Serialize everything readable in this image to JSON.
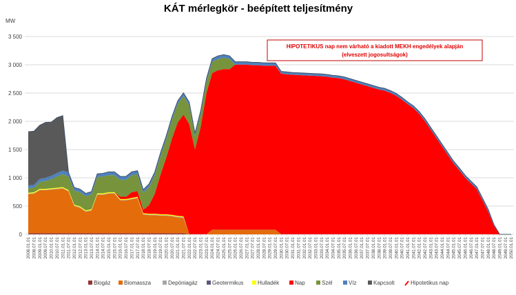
{
  "chart_data": {
    "type": "area",
    "stacked": true,
    "title": "KÁT mérlegkör - beépített teljesítmény",
    "ylabel": "MW",
    "xlabel": "",
    "ylim": [
      0,
      3500
    ],
    "yticks": [
      0,
      500,
      1000,
      1500,
      2000,
      2500,
      3000,
      3500
    ],
    "ytick_labels": [
      "0",
      "500",
      "1 000",
      "1 500",
      "2 000",
      "2 500",
      "3 000",
      "3 500"
    ],
    "grid": true,
    "legend_position": "bottom",
    "annotation": [
      "HIPOTETIKUS nap nem várható a kiadott MEKH engedélyek alapján",
      "(elveszett jogosultságok)"
    ],
    "categories": [
      "2008.01.01",
      "2008.07.01",
      "2009.01.01",
      "2009.07.01",
      "2010.01.01",
      "2010.07.01",
      "2011.01.01",
      "2011.07.01",
      "2012.01.01",
      "2012.07.01",
      "2013.01.01",
      "2013.07.01",
      "2014.01.01",
      "2014.07.01",
      "2015.01.01",
      "2015.07.01",
      "2016.01.01",
      "2016.07.01",
      "2017.01.01",
      "2017.07.01",
      "2018.01.01",
      "2018.07.01",
      "2019.01.01",
      "2019.07.01",
      "2020.01.01",
      "2020.07.01",
      "2021.01.01",
      "2021.07.01",
      "2022.01.01",
      "2022.07.01",
      "2023.01.01",
      "2023.07.01",
      "2024.01.01",
      "2024.07.01",
      "2025.01.01",
      "2025.07.01",
      "2026.01.01",
      "2026.07.01",
      "2027.01.01",
      "2027.07.01",
      "2028.01.01",
      "2028.07.01",
      "2029.01.01",
      "2029.07.01",
      "2030.01.01",
      "2030.07.01",
      "2031.01.01",
      "2031.07.01",
      "2032.01.01",
      "2032.07.01",
      "2033.01.01",
      "2033.07.01",
      "2034.01.01",
      "2034.07.01",
      "2035.01.01",
      "2035.07.01",
      "2036.01.01",
      "2036.07.01",
      "2037.01.01",
      "2037.07.01",
      "2038.01.01",
      "2038.07.01",
      "2039.01.01",
      "2039.07.01",
      "2040.01.01",
      "2040.07.01",
      "2041.01.01",
      "2041.07.01",
      "2042.01.01",
      "2042.07.01",
      "2043.01.01",
      "2043.07.01",
      "2044.01.01",
      "2044.07.01",
      "2045.01.01",
      "2045.07.01",
      "2046.01.01",
      "2046.07.01",
      "2047.01.01",
      "2047.07.01",
      "2048.01.01",
      "2048.07.01",
      "2049.01.01",
      "2049.07.01",
      "2050.01.01"
    ],
    "series": [
      {
        "name": "Biogáz",
        "color": "#953735",
        "values": [
          20,
          20,
          20,
          20,
          20,
          20,
          20,
          20,
          20,
          20,
          20,
          20,
          20,
          20,
          20,
          20,
          20,
          20,
          20,
          20,
          20,
          20,
          20,
          20,
          20,
          20,
          20,
          20,
          0,
          0,
          0,
          0,
          0,
          0,
          0,
          0,
          0,
          0,
          0,
          0,
          0,
          0,
          0,
          0,
          0,
          0,
          0,
          0,
          0,
          0,
          0,
          0,
          0,
          0,
          0,
          0,
          0,
          0,
          0,
          0,
          0,
          0,
          0,
          0,
          0,
          0,
          0,
          0,
          0,
          0,
          0,
          0,
          0,
          0,
          0,
          0,
          0,
          0,
          0,
          0,
          0,
          0,
          0,
          0,
          0
        ]
      },
      {
        "name": "Biomassza",
        "color": "#e46c0a",
        "values": [
          690,
          700,
          760,
          760,
          770,
          780,
          790,
          740,
          480,
          450,
          380,
          400,
          680,
          680,
          700,
          700,
          580,
          580,
          600,
          620,
          330,
          320,
          320,
          310,
          310,
          300,
          280,
          270,
          0,
          0,
          0,
          0,
          80,
          80,
          80,
          80,
          80,
          80,
          80,
          80,
          80,
          80,
          80,
          80,
          0,
          0,
          0,
          0,
          0,
          0,
          0,
          0,
          0,
          0,
          0,
          0,
          0,
          0,
          0,
          0,
          0,
          0,
          0,
          0,
          0,
          0,
          0,
          0,
          0,
          0,
          0,
          0,
          0,
          0,
          0,
          0,
          0,
          0,
          0,
          0,
          0,
          0,
          0,
          0,
          0
        ]
      },
      {
        "name": "Depóniagáz",
        "color": "#a6a6a6",
        "values": [
          10,
          10,
          10,
          10,
          10,
          10,
          10,
          10,
          10,
          10,
          10,
          10,
          10,
          10,
          10,
          10,
          10,
          10,
          10,
          10,
          10,
          10,
          10,
          10,
          10,
          10,
          10,
          10,
          0,
          0,
          0,
          0,
          0,
          0,
          0,
          0,
          0,
          0,
          0,
          0,
          0,
          0,
          0,
          0,
          0,
          0,
          0,
          0,
          0,
          0,
          0,
          0,
          0,
          0,
          0,
          0,
          0,
          0,
          0,
          0,
          0,
          0,
          0,
          0,
          0,
          0,
          0,
          0,
          0,
          0,
          0,
          0,
          0,
          0,
          0,
          0,
          0,
          0,
          0,
          0,
          0,
          0,
          0,
          0,
          0
        ]
      },
      {
        "name": "Geotermikus",
        "color": "#5b5a7d",
        "values": [
          0,
          0,
          0,
          0,
          0,
          0,
          0,
          0,
          0,
          0,
          0,
          0,
          0,
          0,
          0,
          0,
          0,
          0,
          0,
          0,
          0,
          0,
          0,
          0,
          0,
          0,
          3,
          3,
          3,
          3,
          3,
          3,
          3,
          3,
          3,
          3,
          3,
          3,
          3,
          3,
          3,
          3,
          3,
          3,
          3,
          3,
          3,
          3,
          3,
          3,
          3,
          3,
          3,
          3,
          3,
          3,
          3,
          3,
          3,
          3,
          3,
          3,
          3,
          3,
          3,
          3,
          3,
          3,
          3,
          3,
          3,
          3,
          3,
          3,
          3,
          3,
          3,
          3,
          3,
          3,
          3,
          0,
          0,
          0,
          0
        ]
      },
      {
        "name": "Hulladék",
        "color": "#ffff00",
        "values": [
          15,
          15,
          15,
          15,
          15,
          15,
          15,
          15,
          15,
          15,
          15,
          15,
          15,
          15,
          15,
          15,
          15,
          15,
          15,
          15,
          15,
          15,
          15,
          15,
          15,
          15,
          15,
          15,
          0,
          0,
          0,
          0,
          0,
          0,
          0,
          0,
          0,
          0,
          0,
          0,
          0,
          0,
          0,
          0,
          0,
          0,
          0,
          0,
          0,
          0,
          0,
          0,
          0,
          0,
          0,
          0,
          0,
          0,
          0,
          0,
          0,
          0,
          0,
          0,
          0,
          0,
          0,
          0,
          0,
          0,
          0,
          0,
          0,
          0,
          0,
          0,
          0,
          0,
          0,
          0,
          0,
          0,
          0,
          0,
          0
        ]
      },
      {
        "name": "Nap",
        "color": "#ff0000",
        "values": [
          0,
          0,
          0,
          0,
          0,
          0,
          0,
          0,
          0,
          0,
          0,
          0,
          0,
          0,
          0,
          0,
          40,
          40,
          100,
          100,
          60,
          150,
          350,
          700,
          1000,
          1350,
          1650,
          1800,
          1950,
          1500,
          1900,
          2500,
          2770,
          2820,
          2840,
          2840,
          2920,
          2920,
          2920,
          2910,
          2910,
          2900,
          2900,
          2900,
          2840,
          2830,
          2820,
          2815,
          2810,
          2805,
          2800,
          2795,
          2785,
          2770,
          2760,
          2740,
          2710,
          2680,
          2650,
          2620,
          2590,
          2560,
          2540,
          2500,
          2450,
          2380,
          2300,
          2230,
          2130,
          2000,
          1850,
          1700,
          1550,
          1400,
          1250,
          1130,
          1000,
          900,
          800,
          600,
          400,
          150,
          0,
          0,
          0
        ]
      },
      {
        "name": "Szél",
        "color": "#77933c",
        "values": [
          80,
          80,
          120,
          140,
          160,
          200,
          230,
          240,
          250,
          250,
          250,
          260,
          290,
          300,
          300,
          300,
          300,
          300,
          300,
          300,
          300,
          320,
          330,
          330,
          330,
          330,
          330,
          330,
          330,
          230,
          230,
          200,
          200,
          200,
          200,
          180,
          0,
          0,
          0,
          0,
          0,
          0,
          0,
          0,
          0,
          0,
          0,
          0,
          0,
          0,
          0,
          0,
          0,
          0,
          0,
          0,
          0,
          0,
          0,
          0,
          0,
          0,
          0,
          0,
          0,
          0,
          0,
          0,
          0,
          0,
          0,
          0,
          0,
          0,
          0,
          0,
          0,
          0,
          0,
          0,
          0,
          0,
          0,
          0,
          0
        ]
      },
      {
        "name": "Víz",
        "color": "#4f81bd",
        "values": [
          50,
          50,
          55,
          55,
          60,
          60,
          65,
          70,
          55,
          55,
          50,
          50,
          55,
          55,
          60,
          60,
          60,
          60,
          60,
          60,
          55,
          55,
          55,
          55,
          55,
          55,
          55,
          55,
          55,
          55,
          55,
          55,
          55,
          55,
          55,
          55,
          50,
          50,
          50,
          50,
          50,
          50,
          50,
          50,
          40,
          40,
          40,
          40,
          40,
          40,
          40,
          40,
          40,
          40,
          40,
          40,
          40,
          40,
          40,
          40,
          40,
          40,
          40,
          40,
          40,
          40,
          40,
          40,
          40,
          40,
          40,
          40,
          40,
          40,
          40,
          40,
          40,
          40,
          40,
          40,
          40,
          20,
          0,
          0,
          0
        ]
      },
      {
        "name": "Kapcsolt",
        "color": "#595959",
        "values": [
          950,
          950,
          950,
          980,
          950,
          980,
          970,
          0,
          0,
          0,
          0,
          0,
          0,
          0,
          0,
          0,
          0,
          0,
          0,
          0,
          0,
          0,
          0,
          0,
          0,
          0,
          0,
          0,
          0,
          0,
          0,
          0,
          0,
          0,
          0,
          0,
          0,
          0,
          0,
          0,
          0,
          0,
          0,
          0,
          0,
          0,
          0,
          0,
          0,
          0,
          0,
          0,
          0,
          0,
          0,
          0,
          0,
          0,
          0,
          0,
          0,
          0,
          0,
          0,
          0,
          0,
          0,
          0,
          0,
          0,
          0,
          0,
          0,
          0,
          0,
          0,
          0,
          0,
          0,
          0,
          0,
          0,
          0,
          0,
          0
        ]
      }
    ],
    "extra_legend": {
      "name": "Hipotetikus nap",
      "color": "#ff0000",
      "type": "line"
    }
  }
}
